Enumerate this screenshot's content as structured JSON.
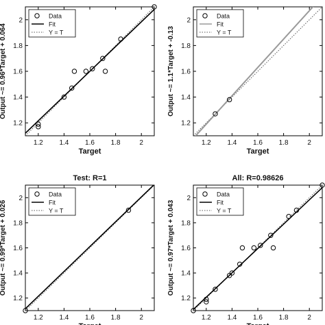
{
  "figure": {
    "colors": {
      "fit": "#000000",
      "fit_secondary": "#9a9a9a",
      "identity": "#555555",
      "data_marker": "#000000",
      "frame": "#000000"
    }
  },
  "chart_data": [
    {
      "type": "scatter",
      "title": "",
      "xlabel": "Target",
      "ylabel": "Output ~= 0.96*Target + 0.064",
      "xlim": [
        1.1,
        2.1
      ],
      "ylim": [
        1.1,
        2.1
      ],
      "xticks": [
        1.2,
        1.4,
        1.6,
        1.8,
        2
      ],
      "yticks": [
        1.2,
        1.4,
        1.6,
        1.8,
        2
      ],
      "xtick_labels": [
        "1.2",
        "1.4",
        "1.6",
        "1.8",
        "2"
      ],
      "ytick_labels": [
        "1.2",
        "1.4",
        "1.6",
        "1.8",
        "2"
      ],
      "fit": {
        "slope": 0.96,
        "intercept": 0.064
      },
      "fit_color": "#000000",
      "legend": {
        "position": "top-left",
        "entries": [
          "Data",
          "Fit",
          "Y = T"
        ]
      },
      "series": [
        {
          "name": "Data",
          "points": [
            [
              1.2,
              1.17
            ],
            [
              1.2,
              1.19
            ],
            [
              1.4,
              1.4
            ],
            [
              1.46,
              1.47
            ],
            [
              1.48,
              1.6
            ],
            [
              1.57,
              1.6
            ],
            [
              1.62,
              1.62
            ],
            [
              1.7,
              1.7
            ],
            [
              1.72,
              1.6
            ],
            [
              1.84,
              1.85
            ],
            [
              2.1,
              2.1
            ]
          ]
        }
      ]
    },
    {
      "type": "scatter",
      "title": "",
      "xlabel": "Target",
      "ylabel": "Output ~= 1.1*Target + -0.13",
      "xlim": [
        1.1,
        2.1
      ],
      "ylim": [
        1.1,
        2.1
      ],
      "xticks": [
        1.2,
        1.4,
        1.6,
        1.8,
        2
      ],
      "yticks": [
        1.2,
        1.4,
        1.6,
        1.8,
        2
      ],
      "xtick_labels": [
        "1.2",
        "1.4",
        "1.6",
        "1.8",
        "2"
      ],
      "ytick_labels": [
        "1.2",
        "1.4",
        "1.6",
        "1.8",
        "2"
      ],
      "fit": {
        "slope": 1.1,
        "intercept": -0.13
      },
      "fit_color": "#9a9a9a",
      "legend": {
        "position": "top-left",
        "entries": [
          "Data",
          "Fit",
          "Y = T"
        ]
      },
      "series": [
        {
          "name": "Data",
          "points": [
            [
              1.27,
              1.27
            ],
            [
              1.38,
              1.38
            ]
          ]
        }
      ]
    },
    {
      "type": "scatter",
      "title": "Test: R=1",
      "xlabel": "Target",
      "ylabel": "Output ~= 0.99*Target + 0.026",
      "xlim": [
        1.1,
        2.1
      ],
      "ylim": [
        1.1,
        2.1
      ],
      "xticks": [
        1.2,
        1.4,
        1.6,
        1.8,
        2
      ],
      "yticks": [
        1.2,
        1.4,
        1.6,
        1.8,
        2
      ],
      "xtick_labels": [
        "1.2",
        "1.4",
        "1.6",
        "1.8",
        "2"
      ],
      "ytick_labels": [
        "1.2",
        "1.4",
        "1.6",
        "1.8",
        "2"
      ],
      "fit": {
        "slope": 0.99,
        "intercept": 0.026
      },
      "fit_color": "#000000",
      "legend": {
        "position": "top-left",
        "entries": [
          "Data",
          "Fit",
          "Y = T"
        ]
      },
      "series": [
        {
          "name": "Data",
          "points": [
            [
              1.1,
              1.1
            ],
            [
              1.9,
              1.9
            ]
          ]
        }
      ]
    },
    {
      "type": "scatter",
      "title": "All: R=0.98626",
      "xlabel": "Target",
      "ylabel": "Output ~= 0.97*Target + 0.043",
      "xlim": [
        1.1,
        2.1
      ],
      "ylim": [
        1.1,
        2.1
      ],
      "xticks": [
        1.2,
        1.4,
        1.6,
        1.8,
        2
      ],
      "yticks": [
        1.2,
        1.4,
        1.6,
        1.8,
        2
      ],
      "xtick_labels": [
        "1.2",
        "1.4",
        "1.6",
        "1.8",
        "2"
      ],
      "ytick_labels": [
        "1.2",
        "1.4",
        "1.6",
        "1.8",
        "2"
      ],
      "fit": {
        "slope": 0.97,
        "intercept": 0.043
      },
      "fit_color": "#000000",
      "legend": {
        "position": "top-left",
        "entries": [
          "Data",
          "Fit",
          "Y = T"
        ]
      },
      "series": [
        {
          "name": "Data",
          "points": [
            [
              1.1,
              1.1
            ],
            [
              1.2,
              1.17
            ],
            [
              1.2,
              1.19
            ],
            [
              1.27,
              1.27
            ],
            [
              1.38,
              1.38
            ],
            [
              1.4,
              1.4
            ],
            [
              1.46,
              1.47
            ],
            [
              1.48,
              1.6
            ],
            [
              1.57,
              1.6
            ],
            [
              1.62,
              1.62
            ],
            [
              1.7,
              1.7
            ],
            [
              1.72,
              1.6
            ],
            [
              1.84,
              1.85
            ],
            [
              1.9,
              1.9
            ],
            [
              2.1,
              2.1
            ]
          ]
        }
      ]
    }
  ]
}
